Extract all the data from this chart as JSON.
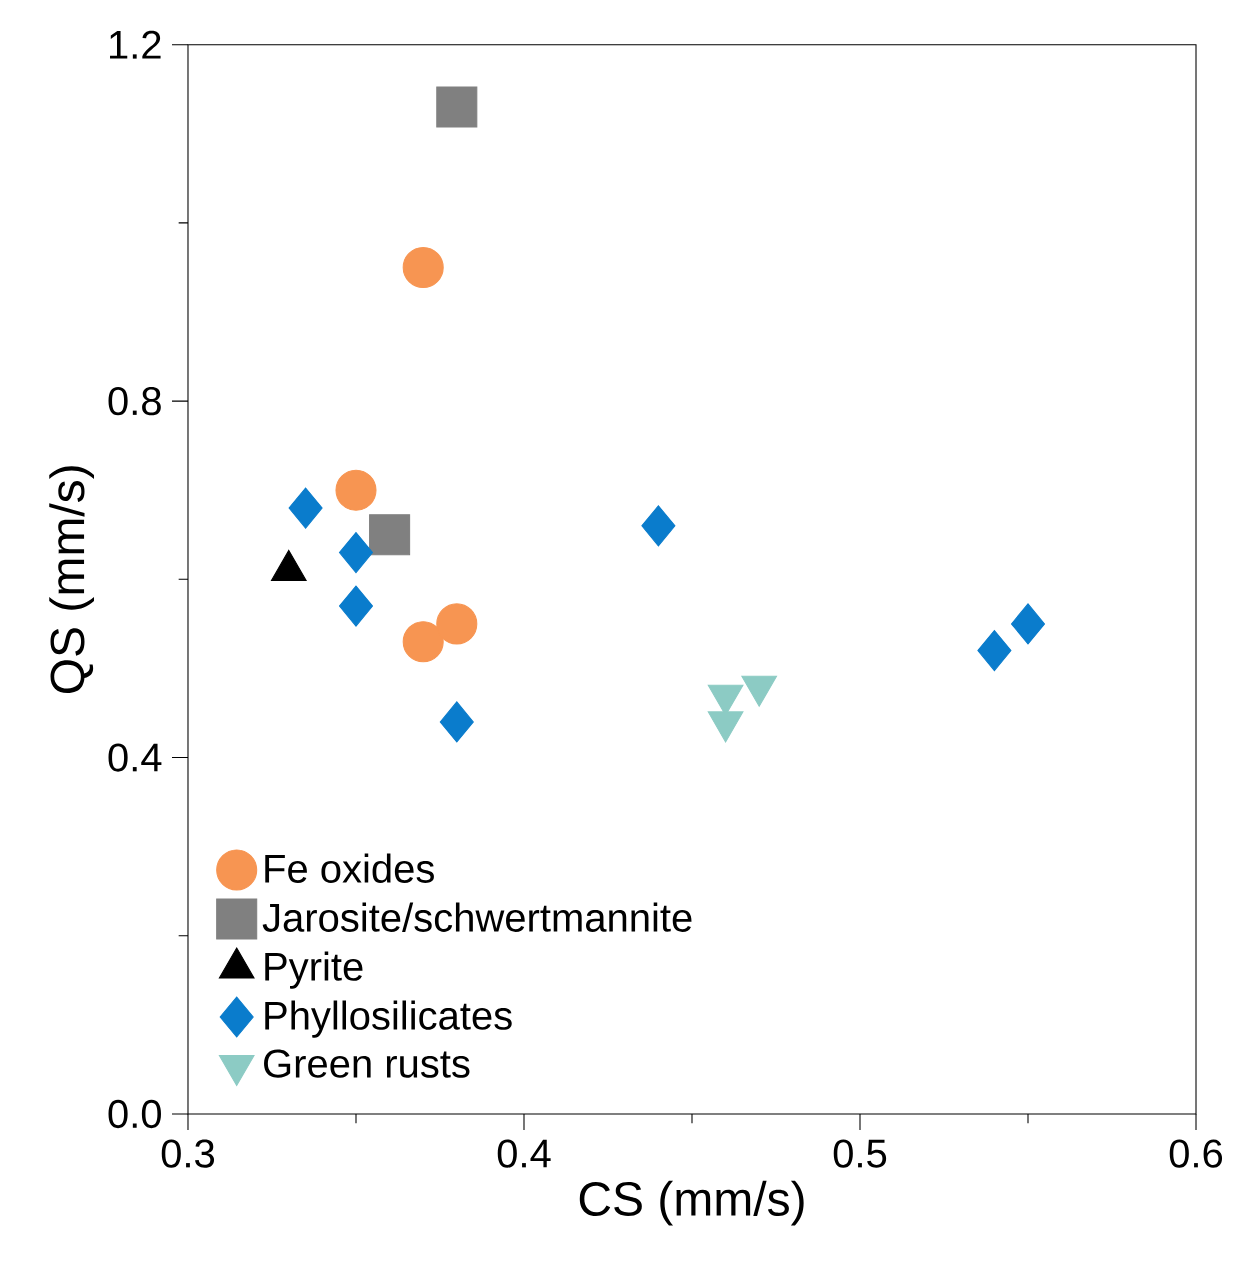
{
  "chart_data": {
    "type": "scatter",
    "xlabel": "CS (mm/s)",
    "ylabel": "QS (mm/s)",
    "xlim": [
      0.3,
      0.6
    ],
    "ylim": [
      0.0,
      1.2
    ],
    "xticks": [
      0.3,
      0.4,
      0.5,
      0.6
    ],
    "yticks": [
      {
        "value": 0,
        "label": "0.0"
      },
      0.4,
      0.8,
      1.2
    ],
    "grid": false,
    "legend": "bottom left",
    "series": [
      {
        "name": "Fe oxides",
        "color": "#f79552",
        "marker": "circle",
        "x": [
          0.37,
          0.35,
          0.37,
          0.38
        ],
        "values": [
          0.95,
          0.7,
          0.53,
          0.55
        ]
      },
      {
        "name": "Jarosite/schwertmannite",
        "color": "#808080",
        "marker": "square",
        "x": [
          0.38,
          0.36
        ],
        "values": [
          1.13,
          0.65
        ]
      },
      {
        "name": "Pyrite",
        "color": "#000000",
        "marker": "triangle",
        "x": [
          0.33
        ],
        "values": [
          0.61
        ]
      },
      {
        "name": "Phyllosilicates",
        "color": "#0a7ccc",
        "marker": "diamond",
        "x": [
          0.335,
          0.35,
          0.35,
          0.38,
          0.44,
          0.54,
          0.55
        ],
        "values": [
          0.68,
          0.63,
          0.57,
          0.44,
          0.66,
          0.52,
          0.55
        ]
      },
      {
        "name": "Green rusts",
        "color": "#8ccbc4",
        "marker": "triangle down",
        "x": [
          0.46,
          0.46,
          0.47
        ],
        "values": [
          0.47,
          0.44,
          0.48
        ]
      }
    ]
  }
}
